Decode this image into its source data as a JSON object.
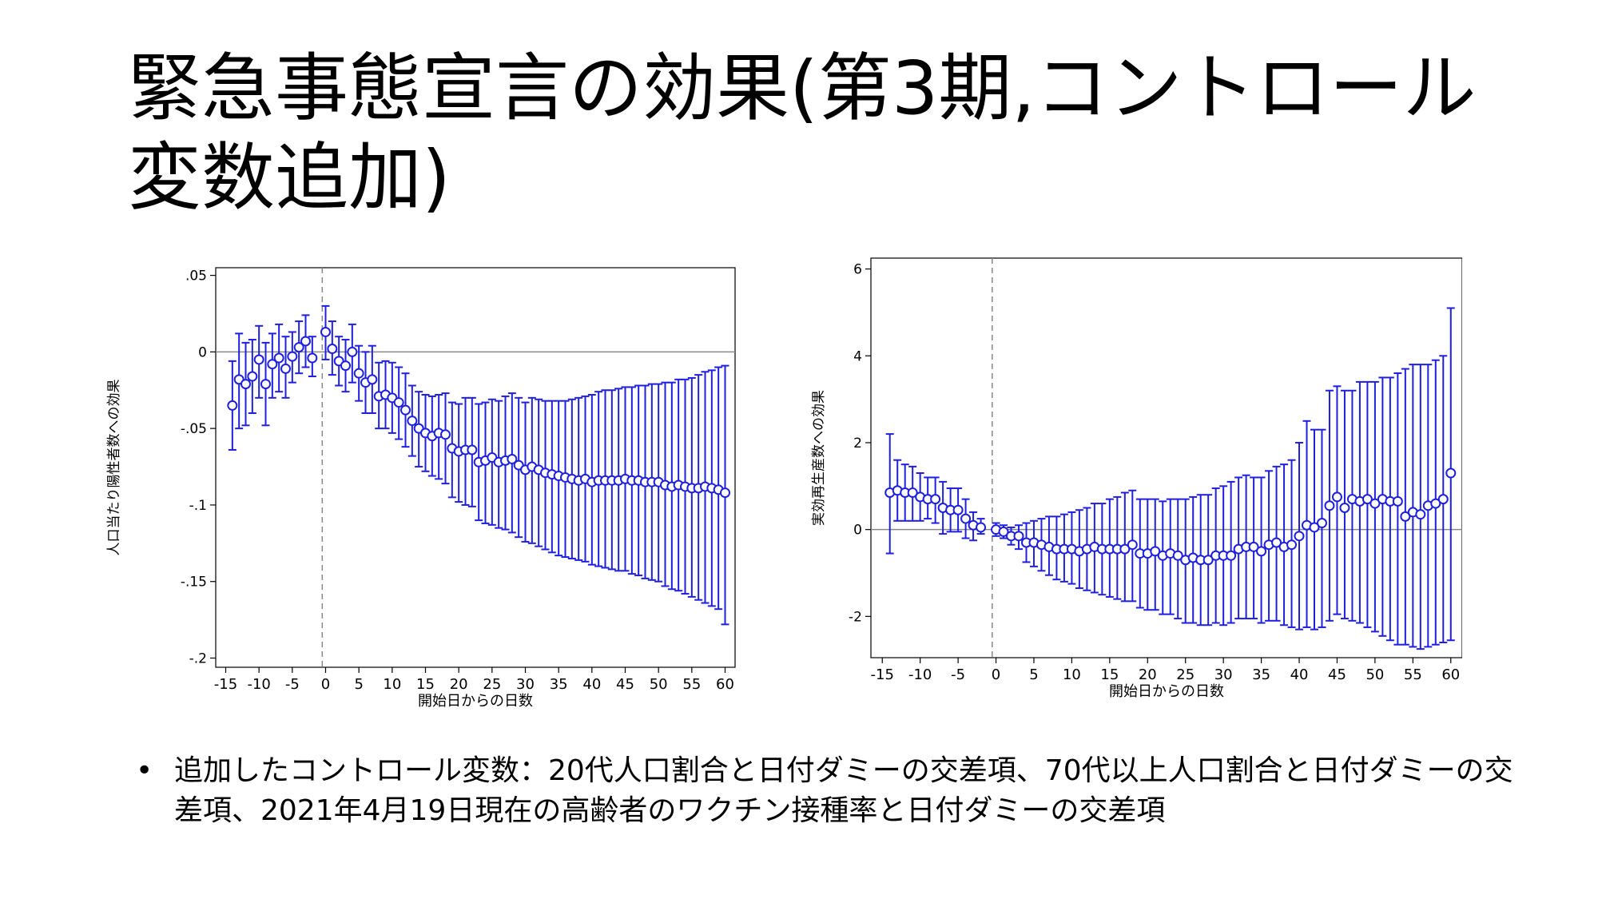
{
  "slide": {
    "title": "緊急事態宣言の効果(第3期,コントロール変数追加)",
    "bullet_symbol": "•",
    "bullet_text": "追加したコントロール変数：20代人口割合と日付ダミーの交差項、70代以上人口割合と日付ダミーの交差項、2021年4月19日現在の高齢者のワクチン接種率と日付ダミーの交差項"
  },
  "colors": {
    "series": "#1f1fe0",
    "axis": "#000000",
    "zero_line": "#888888",
    "vline": "#888888"
  },
  "chart_data": [
    {
      "type": "scatter",
      "error_bars": true,
      "xlabel": "開始日からの日数",
      "ylabel": "人口当たり陽性者数への効果",
      "xlim": [
        -16.5,
        61.5
      ],
      "ylim": [
        -0.206,
        0.055
      ],
      "xticks": [
        -15,
        -10,
        -5,
        0,
        5,
        10,
        15,
        20,
        25,
        30,
        35,
        40,
        45,
        50,
        55,
        60
      ],
      "xtick_labels": [
        "-15",
        "-10",
        "-5",
        "0",
        "5",
        "10",
        "15",
        "20",
        "25",
        "30",
        "35",
        "40",
        "45",
        "50",
        "55",
        "60"
      ],
      "yticks": [
        0.05,
        0,
        -0.05,
        -0.1,
        -0.15,
        -0.2
      ],
      "ytick_labels": [
        ".05",
        "0",
        "-.05",
        "-.1",
        "-.15",
        "-.2"
      ],
      "hline_y": 0,
      "vline_x": -0.5,
      "x": [
        -14,
        -13,
        -12,
        -11,
        -10,
        -9,
        -8,
        -7,
        -6,
        -5,
        -4,
        -3,
        -2,
        0,
        1,
        2,
        3,
        4,
        5,
        6,
        7,
        8,
        9,
        10,
        11,
        12,
        13,
        14,
        15,
        16,
        17,
        18,
        19,
        20,
        21,
        22,
        23,
        24,
        25,
        26,
        27,
        28,
        29,
        30,
        31,
        32,
        33,
        34,
        35,
        36,
        37,
        38,
        39,
        40,
        41,
        42,
        43,
        44,
        45,
        46,
        47,
        48,
        49,
        50,
        51,
        52,
        53,
        54,
        55,
        56,
        57,
        58,
        59,
        60
      ],
      "y": [
        -0.035,
        -0.018,
        -0.021,
        -0.016,
        -0.005,
        -0.021,
        -0.008,
        -0.004,
        -0.011,
        -0.003,
        0.003,
        0.007,
        -0.004,
        0.013,
        0.002,
        -0.006,
        -0.009,
        0.0,
        -0.014,
        -0.02,
        -0.018,
        -0.029,
        -0.028,
        -0.03,
        -0.033,
        -0.038,
        -0.045,
        -0.05,
        -0.053,
        -0.055,
        -0.053,
        -0.054,
        -0.063,
        -0.065,
        -0.064,
        -0.064,
        -0.072,
        -0.071,
        -0.069,
        -0.072,
        -0.071,
        -0.07,
        -0.074,
        -0.077,
        -0.075,
        -0.077,
        -0.079,
        -0.08,
        -0.081,
        -0.082,
        -0.083,
        -0.084,
        -0.083,
        -0.085,
        -0.084,
        -0.084,
        -0.084,
        -0.084,
        -0.083,
        -0.084,
        -0.084,
        -0.085,
        -0.085,
        -0.085,
        -0.087,
        -0.088,
        -0.087,
        -0.088,
        -0.089,
        -0.089,
        -0.088,
        -0.089,
        -0.09,
        -0.092
      ],
      "ci_low": [
        -0.064,
        -0.05,
        -0.048,
        -0.04,
        -0.03,
        -0.048,
        -0.03,
        -0.026,
        -0.03,
        -0.02,
        -0.014,
        -0.01,
        -0.016,
        -0.005,
        -0.015,
        -0.022,
        -0.026,
        -0.02,
        -0.032,
        -0.04,
        -0.04,
        -0.05,
        -0.05,
        -0.053,
        -0.057,
        -0.062,
        -0.068,
        -0.075,
        -0.078,
        -0.081,
        -0.083,
        -0.086,
        -0.095,
        -0.098,
        -0.1,
        -0.101,
        -0.11,
        -0.112,
        -0.113,
        -0.115,
        -0.116,
        -0.118,
        -0.121,
        -0.124,
        -0.125,
        -0.127,
        -0.129,
        -0.131,
        -0.133,
        -0.134,
        -0.135,
        -0.136,
        -0.137,
        -0.139,
        -0.14,
        -0.141,
        -0.142,
        -0.143,
        -0.143,
        -0.145,
        -0.146,
        -0.148,
        -0.149,
        -0.15,
        -0.153,
        -0.155,
        -0.156,
        -0.158,
        -0.16,
        -0.162,
        -0.164,
        -0.166,
        -0.168,
        -0.178
      ],
      "ci_high": [
        -0.006,
        0.012,
        0.006,
        0.008,
        0.017,
        0.006,
        0.012,
        0.018,
        0.01,
        0.013,
        0.02,
        0.024,
        0.01,
        0.03,
        0.02,
        0.01,
        0.008,
        0.018,
        0.004,
        0.0,
        0.004,
        -0.007,
        -0.006,
        -0.007,
        -0.01,
        -0.014,
        -0.022,
        -0.026,
        -0.028,
        -0.029,
        -0.028,
        -0.027,
        -0.033,
        -0.034,
        -0.03,
        -0.03,
        -0.034,
        -0.033,
        -0.031,
        -0.032,
        -0.029,
        -0.027,
        -0.03,
        -0.033,
        -0.03,
        -0.031,
        -0.032,
        -0.032,
        -0.032,
        -0.032,
        -0.031,
        -0.03,
        -0.029,
        -0.028,
        -0.026,
        -0.025,
        -0.025,
        -0.024,
        -0.023,
        -0.023,
        -0.022,
        -0.022,
        -0.021,
        -0.021,
        -0.02,
        -0.02,
        -0.018,
        -0.018,
        -0.017,
        -0.015,
        -0.013,
        -0.012,
        -0.01,
        -0.009
      ]
    },
    {
      "type": "scatter",
      "error_bars": true,
      "xlabel": "開始日からの日数",
      "ylabel": "実効再生産数への効果",
      "xlim": [
        -16.5,
        61.5
      ],
      "ylim": [
        -2.95,
        6.25
      ],
      "xticks": [
        -15,
        -10,
        -5,
        0,
        5,
        10,
        15,
        20,
        25,
        30,
        35,
        40,
        45,
        50,
        55,
        60
      ],
      "xtick_labels": [
        "-15",
        "-10",
        "-5",
        "0",
        "5",
        "10",
        "15",
        "20",
        "25",
        "30",
        "35",
        "40",
        "45",
        "50",
        "55",
        "60"
      ],
      "yticks": [
        6,
        4,
        2,
        0,
        -2
      ],
      "ytick_labels": [
        "6",
        "4",
        "2",
        "0",
        "-2"
      ],
      "hline_y": 0,
      "vline_x": -0.5,
      "x": [
        -14,
        -13,
        -12,
        -11,
        -10,
        -9,
        -8,
        -7,
        -6,
        -5,
        -4,
        -3,
        -2,
        0,
        1,
        2,
        3,
        4,
        5,
        6,
        7,
        8,
        9,
        10,
        11,
        12,
        13,
        14,
        15,
        16,
        17,
        18,
        19,
        20,
        21,
        22,
        23,
        24,
        25,
        26,
        27,
        28,
        29,
        30,
        31,
        32,
        33,
        34,
        35,
        36,
        37,
        38,
        39,
        40,
        41,
        42,
        43,
        44,
        45,
        46,
        47,
        48,
        49,
        50,
        51,
        52,
        53,
        54,
        55,
        56,
        57,
        58,
        59,
        60
      ],
      "y": [
        0.85,
        0.9,
        0.85,
        0.85,
        0.75,
        0.7,
        0.7,
        0.5,
        0.45,
        0.45,
        0.25,
        0.1,
        0.05,
        0.0,
        -0.05,
        -0.15,
        -0.15,
        -0.3,
        -0.3,
        -0.35,
        -0.4,
        -0.45,
        -0.45,
        -0.45,
        -0.5,
        -0.45,
        -0.4,
        -0.45,
        -0.45,
        -0.45,
        -0.45,
        -0.35,
        -0.55,
        -0.55,
        -0.5,
        -0.6,
        -0.55,
        -0.6,
        -0.7,
        -0.65,
        -0.7,
        -0.7,
        -0.6,
        -0.6,
        -0.6,
        -0.45,
        -0.4,
        -0.4,
        -0.5,
        -0.35,
        -0.3,
        -0.4,
        -0.35,
        -0.15,
        0.1,
        0.05,
        0.15,
        0.55,
        0.75,
        0.5,
        0.7,
        0.65,
        0.7,
        0.6,
        0.7,
        0.65,
        0.65,
        0.3,
        0.4,
        0.35,
        0.55,
        0.6,
        0.7,
        1.3
      ],
      "ci_low": [
        -0.55,
        0.2,
        0.2,
        0.2,
        0.2,
        0.25,
        0.15,
        -0.1,
        -0.05,
        -0.05,
        -0.2,
        -0.25,
        -0.1,
        -0.15,
        -0.2,
        -0.35,
        -0.45,
        -0.75,
        -0.85,
        -0.95,
        -1.05,
        -1.15,
        -1.2,
        -1.25,
        -1.35,
        -1.4,
        -1.45,
        -1.5,
        -1.55,
        -1.6,
        -1.65,
        -1.65,
        -1.8,
        -1.85,
        -1.85,
        -1.95,
        -1.95,
        -2.05,
        -2.15,
        -2.15,
        -2.2,
        -2.2,
        -2.15,
        -2.2,
        -2.15,
        -2.05,
        -2.05,
        -2.05,
        -2.15,
        -2.1,
        -2.1,
        -2.2,
        -2.25,
        -2.3,
        -2.25,
        -2.3,
        -2.25,
        -2.1,
        -1.95,
        -2.05,
        -2.1,
        -2.15,
        -2.25,
        -2.35,
        -2.45,
        -2.55,
        -2.65,
        -2.65,
        -2.7,
        -2.75,
        -2.7,
        -2.65,
        -2.6,
        -2.55
      ],
      "ci_high": [
        2.2,
        1.6,
        1.5,
        1.45,
        1.3,
        1.2,
        1.2,
        1.1,
        0.95,
        0.95,
        0.7,
        0.4,
        0.25,
        0.15,
        0.1,
        0.05,
        0.1,
        0.15,
        0.2,
        0.25,
        0.3,
        0.3,
        0.35,
        0.4,
        0.45,
        0.5,
        0.6,
        0.6,
        0.7,
        0.75,
        0.85,
        0.9,
        0.7,
        0.7,
        0.7,
        0.65,
        0.7,
        0.7,
        0.7,
        0.75,
        0.8,
        0.8,
        0.95,
        1.0,
        1.1,
        1.2,
        1.25,
        1.2,
        1.2,
        1.35,
        1.45,
        1.5,
        1.6,
        2.0,
        2.5,
        2.3,
        2.3,
        3.2,
        3.3,
        3.2,
        3.2,
        3.4,
        3.4,
        3.4,
        3.5,
        3.5,
        3.6,
        3.7,
        3.8,
        3.8,
        3.8,
        3.9,
        4.0,
        5.1
      ]
    }
  ]
}
